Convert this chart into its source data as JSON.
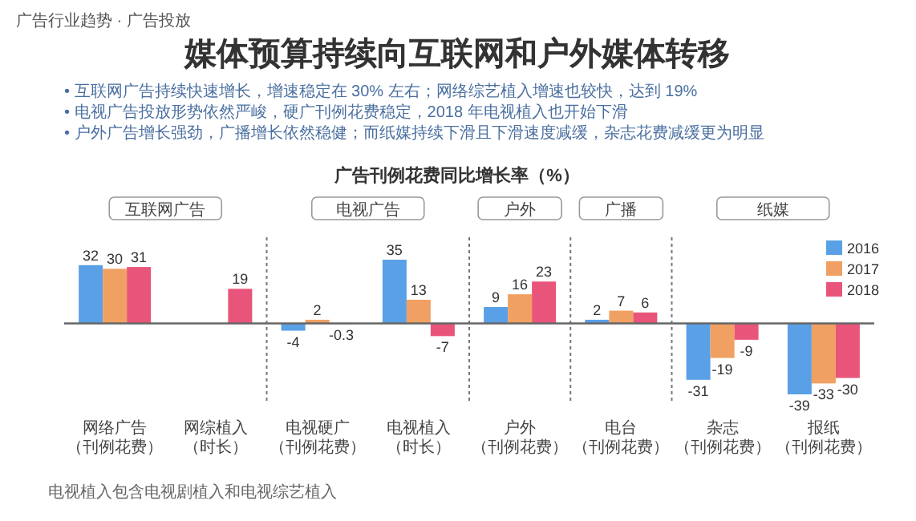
{
  "chart_data": {
    "type": "bar",
    "title": "媒体预算持续向互联网和户外媒体转移",
    "subtitle": "• 互联网广告持续快速增长，增速稳定在 30% 左右；网络综艺植入增速也较快，达到 19%\n• 电视广告投放形势依然严峻，硬广刊例花费稳定，2018 年电视植入也开始下滑\n• 户外广告增长强劲，广播增长依然稳健；而纸媒持续下滑且下滑速度减缓，杂志花费减缓更为明显",
    "ylabel": "广告刊例花费同比增长率（%）",
    "categories": [
      "网络广告（刊例花费）",
      "网综植入（时长）",
      "电视硬广（刊例花费）",
      "电视植入（时长）",
      "户外（刊例花费）",
      "电台（刊例花费）",
      "杂志（刊例花费）",
      "报纸（刊例花费）"
    ],
    "series": [
      {
        "name": "2016",
        "color": "#5aa0e6",
        "values": [
          32,
          null,
          -4,
          35,
          9,
          2,
          -31,
          -39
        ]
      },
      {
        "name": "2017",
        "color": "#f0a062",
        "values": [
          30,
          null,
          2,
          13,
          16,
          7,
          -19,
          -33
        ]
      },
      {
        "name": "2018",
        "color": "#e9557a",
        "values": [
          31,
          19,
          -0.3,
          -7,
          23,
          6,
          -9,
          -30
        ]
      }
    ],
    "data_labels": true,
    "legend": "top right",
    "annotations": [
      "广告行业趋势 · 广告投放",
      "互联网广告",
      "电视广告",
      "户外",
      "广播",
      "纸媒",
      "电视植入包含电视剧植入和电视综艺植入"
    ]
  }
}
